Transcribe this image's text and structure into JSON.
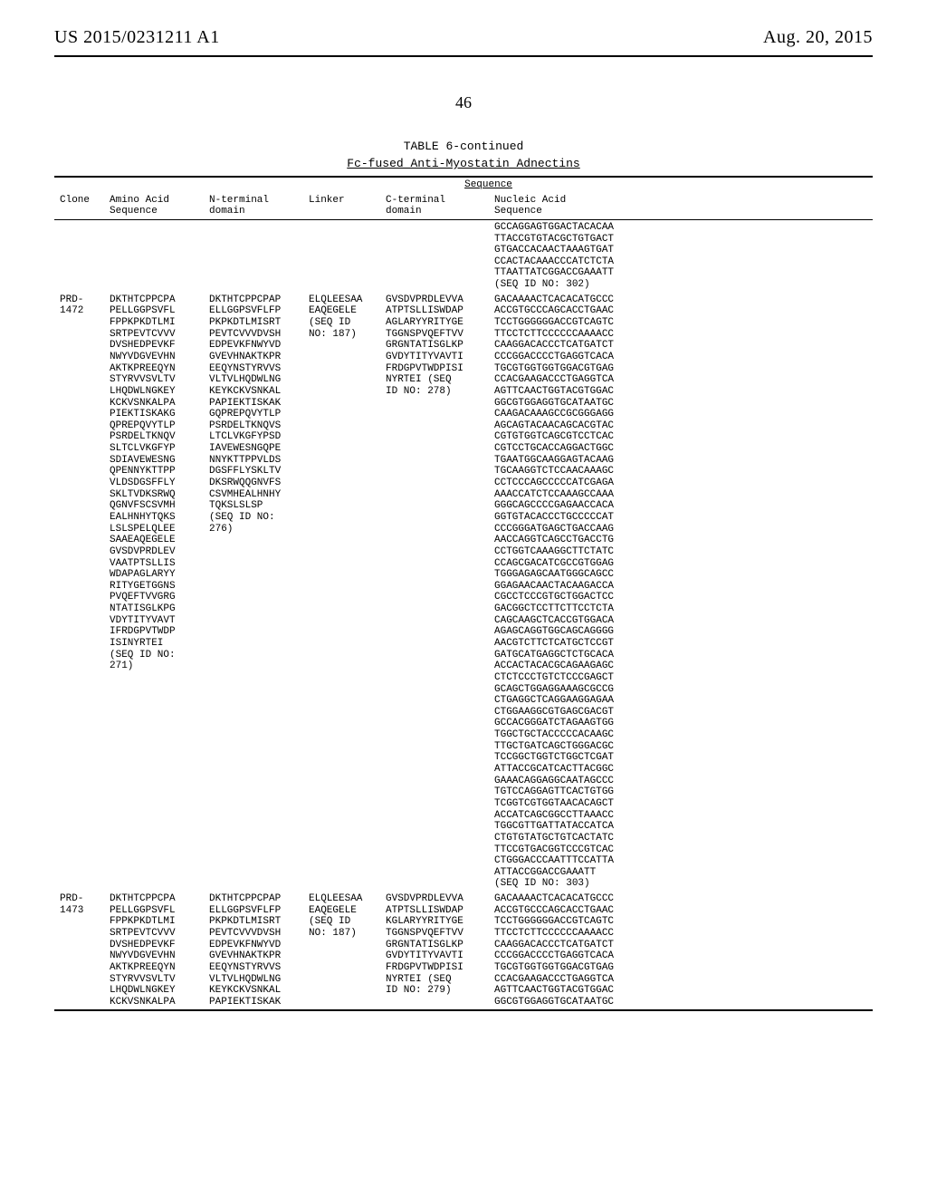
{
  "header": {
    "left": "US 2015/0231211 A1",
    "right": "Aug. 20, 2015"
  },
  "page_number": "46",
  "table": {
    "caption": "TABLE 6-continued",
    "subcaption": "Fc-fused Anti-Myostatin Adnectins",
    "sequence_label": "Sequence",
    "columns": {
      "clone": "Clone",
      "amino": "Amino Acid\nSequence",
      "nterm": "N-terminal\ndomain",
      "linker": "Linker",
      "cterm": "C-terminal\ndomain",
      "nucleic": "Nucleic Acid\nSequence"
    },
    "rows": [
      {
        "clone": "",
        "amino": "",
        "nterm": "",
        "linker": "",
        "cterm": "",
        "nucleic": "GCCAGGAGTGGACTACACAA\nTTACCGTGTACGCTGTGACT\nGTGACCACAACTAAAGTGAT\nCCACTACAAACCCATCTCTA\nTTAATTATCGGACCGAAATT\n(SEQ ID NO: 302)"
      },
      {
        "clone": "PRD-\n1472",
        "amino": "DKTHTCPPCPA\nPELLGGPSVFL\nFPPKPKDTLMI\nSRTPEVTCVVV\nDVSHEDPEVKF\nNWYVDGVEVHN\nAKTKPREEQYN\nSTYRVVSVLTV\nLHQDWLNGKEY\nKCKVSNKALPA\nPIEKTISKAKG\nQPREPQVYTLP\nPSRDELTKNQV\nSLTCLVKGFYP\nSDIAVEWESNG\nQPENNYKTTPP\nVLDSDGSFFLY\nSKLTVDKSRWQ\nQGNVFSCSVMH\nEALHNHYTQKS\nLSLSPELQLEE\nSAAEAQEGELE\nGVSDVPRDLEV\nVAATPTSLLIS\nWDAPAGLARYY\nRITYGETGGNS\nPVQEFTVVGRG\nNTATISGLKPG\nVDYTITYVAVT\nIFRDGPVTWDP\nISINYRTEI\n(SEQ ID NO:\n271)",
        "nterm": "DKTHTCPPCPAP\nELLGGPSVFLFP\nPKPKDTLMISRT\nPEVTCVVVDVSH\nEDPEVKFNWYVD\nGVEVHNAKTKPR\nEEQYNSTYRVVS\nVLTVLHQDWLNG\nKEYKCKVSNKAL\nPAPIEKTISKAK\nGQPREPQVYTLP\nPSRDELTKNQVS\nLTCLVKGFYPSD\nIAVEWESNGQPE\nNNYKTTPPVLDS\nDGSFFLYSKLTV\nDKSRWQQGNVFS\nCSVMHEALHNHY\nTQKSLSLSP\n(SEQ ID NO:\n276)",
        "linker": "ELQLEESAA\nEAQEGELE\n(SEQ ID\nNO: 187)",
        "cterm": "GVSDVPRDLEVVA\nATPTSLLISWDAP\nAGLARYYRITYGE\nTGGNSPVQEFTVV\nGRGNTATISGLKP\nGVDYTITYVAVTI\nFRDGPVTWDPISI\nNYRTEI (SEQ\nID NO: 278)",
        "nucleic": "GACAAAACTCACACATGCCC\nACCGTGCCCAGCACCTGAAC\nTCCTGGGGGGACCGTCAGTC\nTTCCTCTTCCCCCCAAAACC\nCAAGGACACCCTCATGATCT\nCCCGGACCCCTGAGGTCACA\nTGCGTGGTGGTGGACGTGAG\nCCACGAAGACCCTGAGGTCA\nAGTTCAACTGGTACGTGGAC\nGGCGTGGAGGTGCATAATGC\nCAAGACAAAGCCGCGGGAGG\nAGCAGTACAACAGCACGTAC\nCGTGTGGTCAGCGTCCTCAC\nCGTCCTGCACCAGGACTGGC\nTGAATGGCAAGGAGTACAAG\nTGCAAGGTCTCCAACAAAGC\nCCTCCCAGCCCCCATCGAGA\nAAACCATCTCCAAAGCCAAA\nGGGCAGCCCCGAGAACCACA\nGGTGTACACCCTGCCCCCAT\nCCCGGGATGAGCTGACCAAG\nAACCAGGTCAGCCTGACCTG\nCCTGGTCAAAGGCTTCTATC\nCCAGCGACATCGCCGTGGAG\nTGGGAGAGCAATGGGCAGCC\nGGAGAACAACTACAAGACCA\nCGCCTCCCGTGCTGGACTCC\nGACGGCTCCTTCTTCCTCTA\nCAGCAAGCTCACCGTGGACA\nAGAGCAGGTGGCAGCAGGGG\nAACGTCTTCTCATGCTCCGT\nGATGCATGAGGCTCTGCACA\nACCACTACACGCAGAAGAGC\nCTCTCCCTGTCTCCCGAGCT\nGCAGCTGGAGGAAAGCGCCG\nCTGAGGCTCAGGAAGGAGAA\nCTGGAAGGCGTGAGCGACGT\nGCCACGGGATCTAGAAGTGG\nTGGCTGCTACCCCCACAAGC\nTTGCTGATCAGCTGGGACGC\nTCCGGCTGGTCTGGCTCGAT\nATTACCGCATCACTTACGGC\nGAAACAGGAGGCAATAGCCC\nTGTCCAGGAGTTCACTGTGG\nTCGGTCGTGGTAACACAGCT\nACCATCAGCGGCCTTAAACC\nTGGCGTTGATTATACCATCA\nCTGTGTATGCTGTCACTATC\nTTCCGTGACGGTCCCGTCAC\nCTGGGACCCAATTTCCATTA\nATTACCGGACCGAAATT\n(SEQ ID NO: 303)"
      },
      {
        "clone": "PRD-\n1473",
        "amino": "DKTHTCPPCPA\nPELLGGPSVFL\nFPPKPKDTLMI\nSRTPEVTCVVV\nDVSHEDPEVKF\nNWYVDGVEVHN\nAKTKPREEQYN\nSTYRVVSVLTV\nLHQDWLNGKEY\nKCKVSNKALPA",
        "nterm": "DKTHTCPPCPAP\nELLGGPSVFLFP\nPKPKDTLMISRT\nPEVTCVVVDVSH\nEDPEVKFNWYVD\nGVEVHNAKTKPR\nEEQYNSTYRVVS\nVLTVLHQDWLNG\nKEYKCKVSNKAL\nPAPIEKTISKAK",
        "linker": "ELQLEESAA\nEAQEGELE\n(SEQ ID\nNO: 187)",
        "cterm": "GVSDVPRDLEVVA\nATPTSLLISWDAP\nKGLARYYRITYGE\nTGGNSPVQEFTVV\nGRGNTATISGLKP\nGVDYTITYVAVTI\nFRDGPVTWDPISI\nNYRTEI (SEQ\nID NO: 279)",
        "nucleic": "GACAAAACTCACACATGCCC\nACCGTGCCCAGCACCTGAAC\nTCCTGGGGGGACCGTCAGTC\nTTCCTCTTCCCCCCAAAACC\nCAAGGACACCCTCATGATCT\nCCCGGACCCCTGAGGTCACA\nTGCGTGGTGGTGGACGTGAG\nCCACGAAGACCCTGAGGTCA\nAGTTCAACTGGTACGTGGAC\nGGCGTGGAGGTGCATAATGC"
      }
    ]
  }
}
